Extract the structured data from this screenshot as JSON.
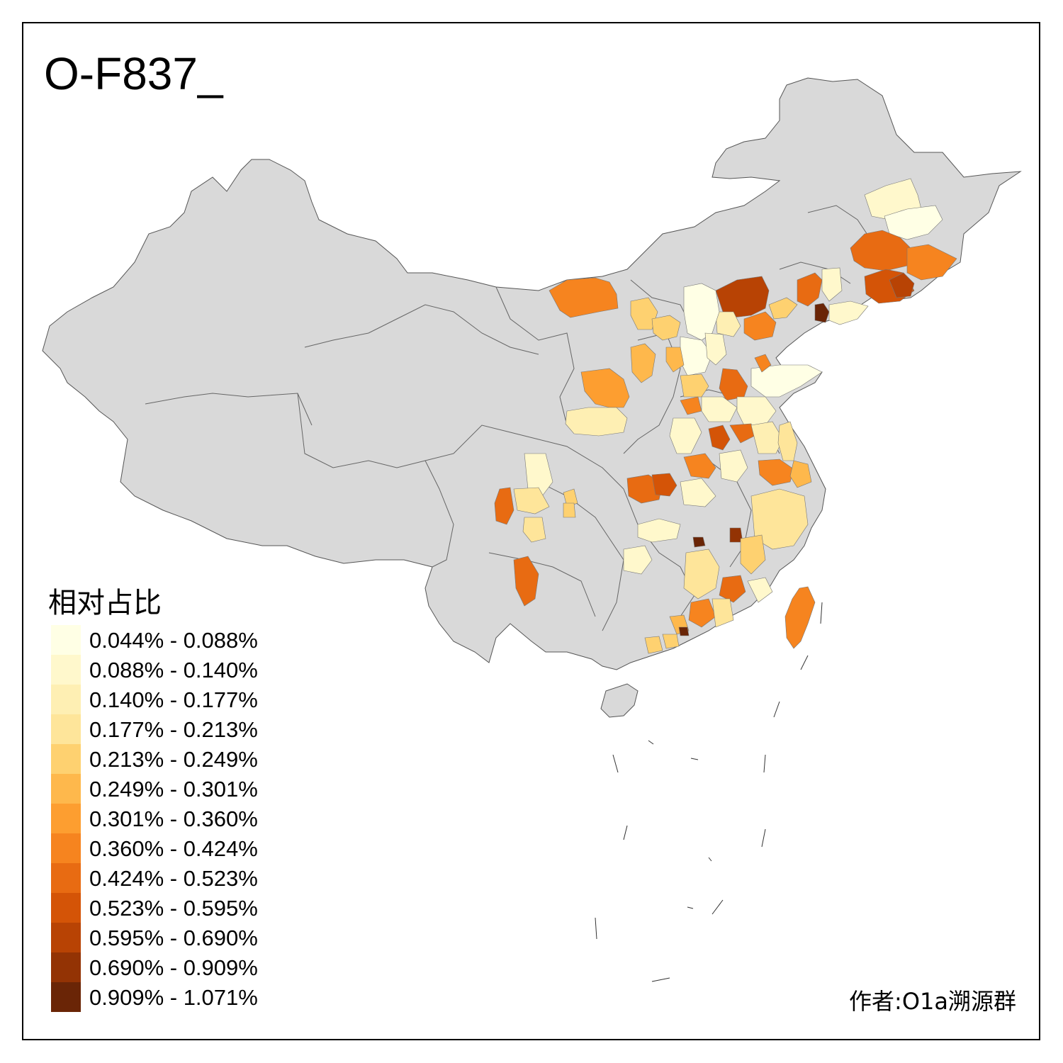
{
  "title": "O-F837_",
  "legend": {
    "title": "相对占比",
    "items": [
      {
        "label": "0.044% - 0.088%",
        "color": "#ffffe5"
      },
      {
        "label": "0.088% - 0.140%",
        "color": "#fff8cc"
      },
      {
        "label": "0.140% - 0.177%",
        "color": "#feefb3"
      },
      {
        "label": "0.177% - 0.213%",
        "color": "#fee59a"
      },
      {
        "label": "0.213% - 0.249%",
        "color": "#fed170"
      },
      {
        "label": "0.249% - 0.301%",
        "color": "#feb84c"
      },
      {
        "label": "0.301% - 0.360%",
        "color": "#fd9e30"
      },
      {
        "label": "0.360% - 0.424%",
        "color": "#f6841f"
      },
      {
        "label": "0.424% - 0.523%",
        "color": "#e86b12"
      },
      {
        "label": "0.523% - 0.595%",
        "color": "#d45407"
      },
      {
        "label": "0.595% - 0.690%",
        "color": "#b84304"
      },
      {
        "label": "0.690% - 0.909%",
        "color": "#933304"
      },
      {
        "label": "0.909% - 1.071%",
        "color": "#6a2506"
      }
    ]
  },
  "credit": "作者:O1a溯源群",
  "colors": {
    "land": "#d9d9d9",
    "border": "#555555",
    "background": "#ffffff"
  }
}
